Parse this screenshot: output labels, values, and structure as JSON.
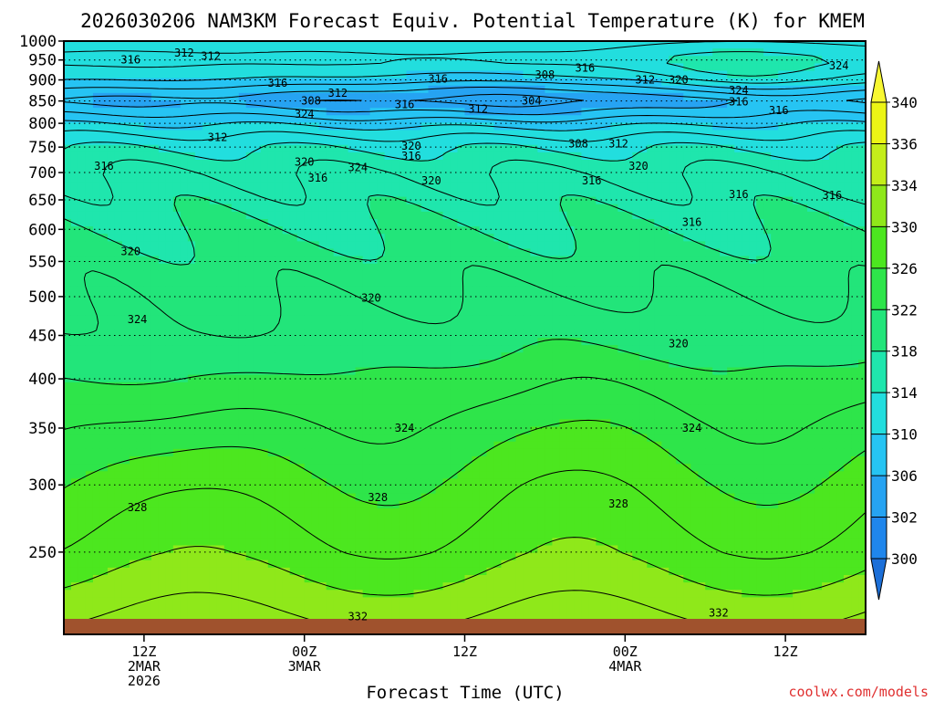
{
  "chart_data": {
    "type": "heatmap",
    "title": "2026030206 NAM3KM Forecast Equiv. Potential Temperature (K) for KMEM",
    "xlabel": "Forecast Time (UTC)",
    "ylabel": "",
    "credit": "coolwx.com/models",
    "y_scale": "log",
    "ylim": [
      1000,
      200
    ],
    "y_ticks": [
      250,
      300,
      350,
      400,
      450,
      500,
      550,
      600,
      650,
      700,
      750,
      800,
      850,
      900,
      950,
      1000
    ],
    "x_range_hours": [
      -3,
      57
    ],
    "x_ticks": [
      {
        "hour": 3,
        "lines": [
          "12Z",
          "2MAR",
          "2026"
        ]
      },
      {
        "hour": 15,
        "lines": [
          "00Z",
          "3MAR"
        ]
      },
      {
        "hour": 27,
        "lines": [
          "12Z"
        ]
      },
      {
        "hour": 39,
        "lines": [
          "00Z",
          "4MAR"
        ]
      },
      {
        "hour": 51,
        "lines": [
          "12Z"
        ]
      }
    ],
    "colorbar": {
      "ticks": [
        300,
        302,
        306,
        310,
        314,
        318,
        322,
        326,
        330,
        334,
        336,
        340
      ],
      "bands": [
        {
          "from": 298,
          "to": 300,
          "color": "#1c6fd8"
        },
        {
          "from": 300,
          "to": 302,
          "color": "#1f86ec"
        },
        {
          "from": 302,
          "to": 306,
          "color": "#26a3f2"
        },
        {
          "from": 306,
          "to": 310,
          "color": "#26c4f3"
        },
        {
          "from": 310,
          "to": 314,
          "color": "#22dede"
        },
        {
          "from": 314,
          "to": 318,
          "color": "#1fe6ad"
        },
        {
          "from": 318,
          "to": 322,
          "color": "#22e57a"
        },
        {
          "from": 322,
          "to": 326,
          "color": "#2ee54a"
        },
        {
          "from": 326,
          "to": 330,
          "color": "#4ce71f"
        },
        {
          "from": 330,
          "to": 334,
          "color": "#8fe81a"
        },
        {
          "from": 334,
          "to": 336,
          "color": "#c4ee1a"
        },
        {
          "from": 336,
          "to": 340,
          "color": "#ecf515"
        },
        {
          "from": 340,
          "to": 342,
          "color": "#f8f832"
        }
      ]
    },
    "terrain_color": "#a0522d",
    "contour_interval": 2,
    "profile": {
      "levels_hpa": [
        1000,
        950,
        900,
        850,
        800,
        750,
        700,
        650,
        600,
        550,
        500,
        450,
        400,
        350,
        300,
        250,
        200
      ],
      "theta_e_k": [
        311,
        313,
        312,
        308,
        311,
        314,
        316,
        317,
        318,
        319,
        320,
        321,
        323,
        325,
        327,
        329,
        333
      ]
    },
    "contour_labels": [
      {
        "text": "332",
        "hour": 19,
        "p": 210
      },
      {
        "text": "332",
        "hour": 46,
        "p": 212
      },
      {
        "text": "328",
        "hour": 2.5,
        "p": 282
      },
      {
        "text": "328",
        "hour": 20.5,
        "p": 290
      },
      {
        "text": "328",
        "hour": 38.5,
        "p": 285
      },
      {
        "text": "324",
        "hour": 22.5,
        "p": 350
      },
      {
        "text": "324",
        "hour": 44,
        "p": 350
      },
      {
        "text": "324",
        "hour": 2.5,
        "p": 470
      },
      {
        "text": "320",
        "hour": 43,
        "p": 440
      },
      {
        "text": "320",
        "hour": 20,
        "p": 498
      },
      {
        "text": "320",
        "hour": 2,
        "p": 565
      },
      {
        "text": "316",
        "hour": 44,
        "p": 612
      },
      {
        "text": "316",
        "hour": 47.5,
        "p": 660
      },
      {
        "text": "316",
        "hour": 54.5,
        "p": 658
      },
      {
        "text": "316",
        "hour": 0,
        "p": 712
      },
      {
        "text": "316",
        "hour": 16,
        "p": 690
      },
      {
        "text": "320",
        "hour": 15,
        "p": 720
      },
      {
        "text": "320",
        "hour": 24.5,
        "p": 685
      },
      {
        "text": "316",
        "hour": 36.5,
        "p": 685
      },
      {
        "text": "320",
        "hour": 40,
        "p": 712
      },
      {
        "text": "324",
        "hour": 19,
        "p": 710
      },
      {
        "text": "316",
        "hour": 23,
        "p": 732
      },
      {
        "text": "320",
        "hour": 23,
        "p": 752
      },
      {
        "text": "312",
        "hour": 8.5,
        "p": 770
      },
      {
        "text": "308",
        "hour": 35.5,
        "p": 757
      },
      {
        "text": "312",
        "hour": 38.5,
        "p": 757
      },
      {
        "text": "324",
        "hour": 15,
        "p": 820
      },
      {
        "text": "308",
        "hour": 15.5,
        "p": 850
      },
      {
        "text": "312",
        "hour": 17.5,
        "p": 868
      },
      {
        "text": "316",
        "hour": 22.5,
        "p": 842
      },
      {
        "text": "312",
        "hour": 28,
        "p": 832
      },
      {
        "text": "304",
        "hour": 32,
        "p": 850
      },
      {
        "text": "316",
        "hour": 13,
        "p": 892
      },
      {
        "text": "316",
        "hour": 25,
        "p": 902
      },
      {
        "text": "308",
        "hour": 33,
        "p": 912
      },
      {
        "text": "316",
        "hour": 36,
        "p": 930
      },
      {
        "text": "312",
        "hour": 40.5,
        "p": 900
      },
      {
        "text": "320",
        "hour": 43,
        "p": 900
      },
      {
        "text": "324",
        "hour": 47.5,
        "p": 875
      },
      {
        "text": "316",
        "hour": 47.5,
        "p": 848
      },
      {
        "text": "316",
        "hour": 50.5,
        "p": 828
      },
      {
        "text": "324",
        "hour": 55,
        "p": 935
      },
      {
        "text": "316",
        "hour": 2,
        "p": 950
      },
      {
        "text": "312",
        "hour": 6,
        "p": 968
      },
      {
        "text": "312",
        "hour": 8,
        "p": 960
      }
    ]
  }
}
